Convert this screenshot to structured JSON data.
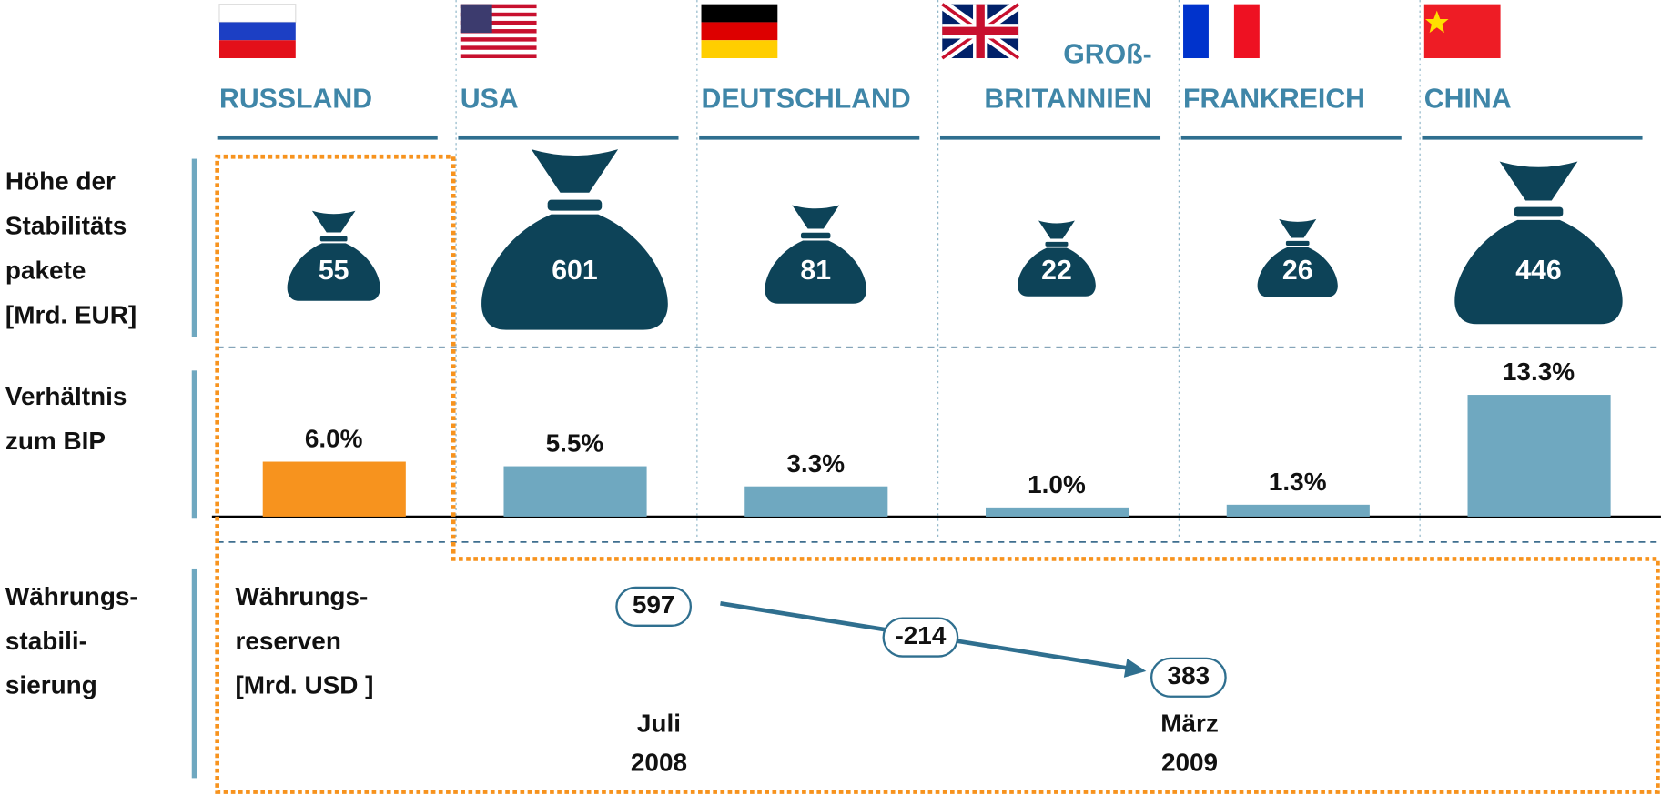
{
  "row_labels": {
    "stimulus": [
      "Höhe der",
      "Stabilitäts",
      "pakete",
      " [Mrd. EUR]"
    ],
    "gdp": [
      "Verhältnis",
      "zum BIP"
    ],
    "currency": [
      "Währungs-",
      "stabili-",
      "sierung"
    ]
  },
  "countries": [
    {
      "name": [
        "RUSSLAND"
      ],
      "stimulus": 55,
      "gdp_ratio": {
        "value": 6.0,
        "label": "6.0%"
      }
    },
    {
      "name": [
        "USA"
      ],
      "stimulus": 601,
      "gdp_ratio": {
        "value": 5.5,
        "label": "5.5%"
      }
    },
    {
      "name": [
        "DEUTSCHLAND"
      ],
      "stimulus": 81,
      "gdp_ratio": {
        "value": 3.3,
        "label": "3.3%"
      }
    },
    {
      "name": [
        "GROß-",
        "BRITANNIEN"
      ],
      "stimulus": 22,
      "gdp_ratio": {
        "value": 1.0,
        "label": "1.0%"
      }
    },
    {
      "name": [
        "FRANKREICH"
      ],
      "stimulus": 26,
      "gdp_ratio": {
        "value": 1.3,
        "label": "1.3%"
      }
    },
    {
      "name": [
        "CHINA"
      ],
      "stimulus": 446,
      "gdp_ratio": {
        "value": 13.3,
        "label": "13.3%"
      }
    }
  ],
  "reserves": {
    "label": [
      "Währungs-",
      "reserven",
      "[Mrd. USD ]"
    ],
    "start": {
      "value": 597,
      "date": [
        "Juli",
        "2008"
      ]
    },
    "change": -214,
    "end": {
      "value": 383,
      "date": [
        "März",
        "2009"
      ]
    }
  }
}
